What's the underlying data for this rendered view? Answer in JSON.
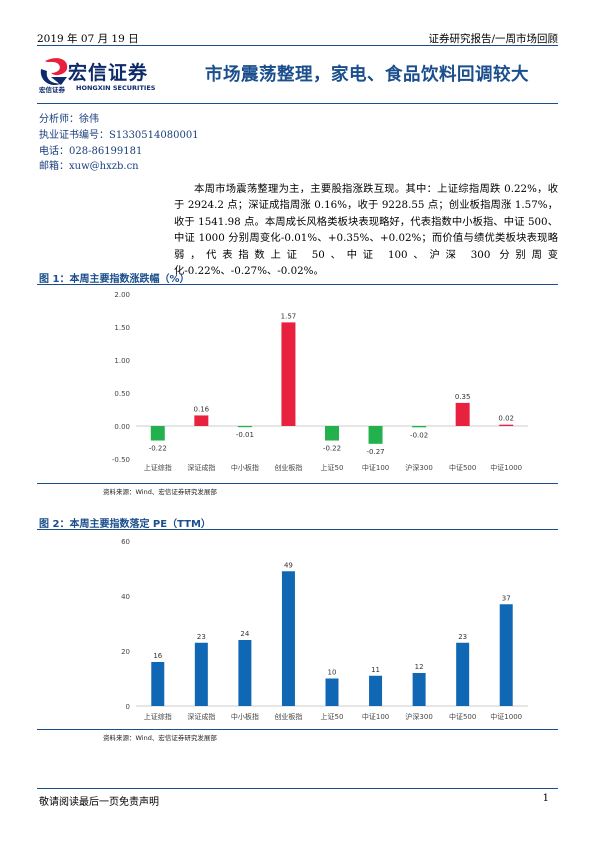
{
  "header": {
    "date": "2019 年 07 月 19 日",
    "category": "证券研究报告/一周市场回顾"
  },
  "logo": {
    "name": "宏信证券",
    "sub_cn": "宏信证券",
    "sub_en": "HONGXIN SECURITIES"
  },
  "report": {
    "title": "市场震荡整理，家电、食品饮料回调较大"
  },
  "analyst": {
    "name": "分析师：徐伟",
    "license": "执业证书编号：S1330514080001",
    "phone": "电话：028-86199181",
    "email": "邮箱：xuw@hxzb.cn"
  },
  "summary": "本周市场震荡整理为主，主要股指涨跌互现。其中：上证综指周跌 0.22%，收于 2924.2 点；深证成指周涨 0.16%，收于 9228.55 点；创业板指周涨 1.57%，收于 1541.98 点。本周成长风格类板块表现略好，代表指数中小板指、中证 500、中证 1000 分别周变化-0.01%、+0.35%、+0.02%；而价值与绩优类板块表现略弱，代表指数上证 50、中证 100、沪深 300 分别周变化-0.22%、-0.27%、-0.02%。",
  "figure1": {
    "title": "图 1：本周主要指数涨跌幅（%）",
    "source": "资料来源：Wind、宏信证券研究发展部"
  },
  "figure2": {
    "title": "图 2：本周主要指数落定 PE（TTM）",
    "source": "资料来源：Wind、宏信证券研究发展部"
  },
  "colors": {
    "positive": "#e8223e",
    "negative": "#22b14c",
    "bar2": "#1068b4",
    "accent": "#1a4e8c"
  },
  "chart_data": [
    {
      "type": "bar",
      "categories": [
        "上证综指",
        "深证成指",
        "中小板指",
        "创业板指",
        "上证50",
        "中证100",
        "沪深300",
        "中证500",
        "中证1000"
      ],
      "values": [
        -0.22,
        0.16,
        -0.01,
        1.57,
        -0.22,
        -0.27,
        -0.02,
        0.35,
        0.02
      ],
      "labels": [
        "-0.22",
        "0.16",
        "-0.01",
        "1.57",
        "-0.22",
        "-0.27",
        "-0.02",
        "0.35",
        "0.02"
      ],
      "yticks": [
        "2.00",
        "1.50",
        "1.00",
        "0.50",
        "0.00",
        "-0.50"
      ],
      "ylim": [
        -0.5,
        2.0
      ],
      "title": "",
      "xlabel": "",
      "ylabel": ""
    },
    {
      "type": "bar",
      "categories": [
        "上证综指",
        "深证成指",
        "中小板指",
        "创业板指",
        "上证50",
        "中证100",
        "沪深300",
        "中证500",
        "中证1000"
      ],
      "values": [
        16,
        23,
        24,
        49,
        10,
        11,
        12,
        23,
        37
      ],
      "yticks": [
        "60",
        "40",
        "20",
        "0"
      ],
      "ylim": [
        0,
        60
      ],
      "title": "",
      "xlabel": "",
      "ylabel": ""
    }
  ]
}
